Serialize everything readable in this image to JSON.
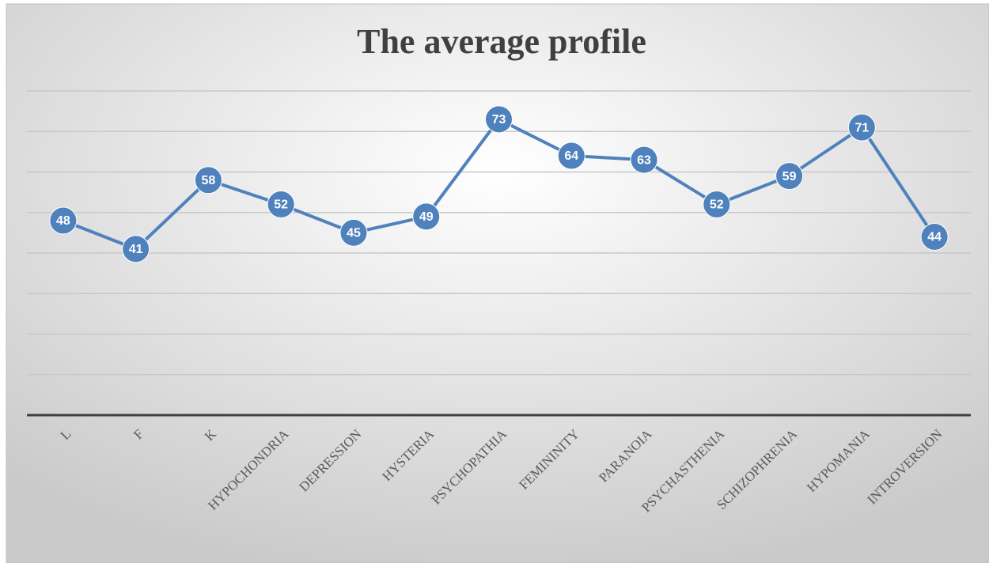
{
  "chart_data": {
    "type": "line",
    "title": "The average profile",
    "categories": [
      "L",
      "F",
      "K",
      "HYPOCHONDRIA",
      "DEPRESSION",
      "HYSTERIA",
      "PSYCHOPATHIA",
      "FEMININITY",
      "PARANOIA",
      "PSYCHASTHENIA",
      "SCHIZOPHRENIA",
      "HYPOMANIA",
      "INTROVERSION"
    ],
    "series": [
      {
        "color": "#4f81bd",
        "values": [
          48,
          41,
          58,
          52,
          45,
          49,
          73,
          64,
          63,
          52,
          59,
          71,
          44
        ]
      }
    ],
    "ylim": [
      0,
      80
    ],
    "yticks": [
      0,
      10,
      20,
      30,
      40,
      50,
      60,
      70,
      80
    ],
    "grid": true
  }
}
